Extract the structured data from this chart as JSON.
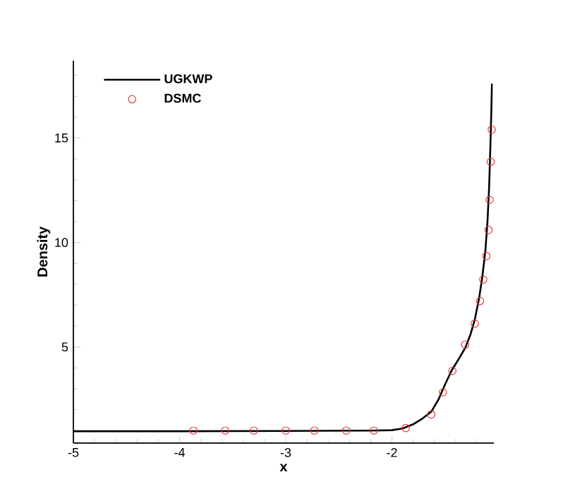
{
  "chart_data": {
    "type": "line",
    "xlabel": "x",
    "ylabel": "Density",
    "xlim": [
      -5,
      -1.04
    ],
    "ylim": [
      0.4,
      18.7
    ],
    "xticks": [
      -5,
      -4,
      -3,
      -2,
      {
        "value": -4.8,
        "label": null
      },
      {
        "value": -4.6,
        "label": null
      },
      {
        "value": -4.4,
        "label": null
      },
      {
        "value": -4.2,
        "label": null
      },
      {
        "value": -3.8,
        "label": null
      },
      {
        "value": -3.6,
        "label": null
      },
      {
        "value": -3.4,
        "label": null
      },
      {
        "value": -3.2,
        "label": null
      },
      {
        "value": -2.8,
        "label": null
      },
      {
        "value": -2.6,
        "label": null
      },
      {
        "value": -2.4,
        "label": null
      },
      {
        "value": -2.2,
        "label": null
      },
      {
        "value": -1.8,
        "label": null
      },
      {
        "value": -1.6,
        "label": null
      },
      {
        "value": -1.4,
        "label": null
      },
      {
        "value": -1.2,
        "label": null
      }
    ],
    "yticks": [
      5,
      10,
      15,
      {
        "value": 1,
        "label": null
      },
      {
        "value": 2,
        "label": null
      },
      {
        "value": 3,
        "label": null
      },
      {
        "value": 4,
        "label": null
      },
      {
        "value": 6,
        "label": null
      },
      {
        "value": 7,
        "label": null
      },
      {
        "value": 8,
        "label": null
      },
      {
        "value": 9,
        "label": null
      },
      {
        "value": 11,
        "label": null
      },
      {
        "value": 12,
        "label": null
      },
      {
        "value": 13,
        "label": null
      },
      {
        "value": 14,
        "label": null
      },
      {
        "value": 16,
        "label": null
      },
      {
        "value": 17,
        "label": null
      },
      {
        "value": 18,
        "label": null
      }
    ],
    "legend": "top left",
    "grid": false,
    "series": [
      {
        "name": "UGKWP",
        "color": "#000000",
        "marker": "none",
        "line_style": "solid",
        "x": [
          -5,
          -4,
          -3,
          -2.2,
          -2,
          -1.9,
          -1.8,
          -1.72,
          -1.63,
          -1.56,
          -1.5,
          -1.44,
          -1.38,
          -1.31,
          -1.26,
          -1.22,
          -1.18,
          -1.15,
          -1.12,
          -1.1,
          -1.085,
          -1.075,
          -1.065,
          -1.058
        ],
        "values": [
          0.97,
          0.97,
          0.98,
          1.0,
          1.02,
          1.1,
          1.3,
          1.55,
          1.9,
          2.5,
          3.2,
          3.85,
          4.35,
          4.95,
          5.6,
          6.3,
          7.3,
          8.3,
          9.6,
          11.0,
          12.6,
          14.2,
          16.0,
          17.6
        ]
      },
      {
        "name": "DSMC",
        "type": "scatter",
        "color": "#e8383d",
        "marker": "circle",
        "x": [
          -3.87,
          -3.57,
          -3.3,
          -3.0,
          -2.73,
          -2.43,
          -2.17,
          -1.87,
          -1.63,
          -1.52,
          -1.43,
          -1.31,
          -1.22,
          -1.17,
          -1.14,
          -1.11,
          -1.09,
          -1.08,
          -1.07,
          -1.06
        ],
        "values": [
          1,
          1,
          1,
          1,
          1,
          1,
          1,
          1.12,
          1.77,
          2.83,
          3.86,
          5.11,
          6.12,
          7.2,
          8.23,
          9.35,
          10.6,
          12.04,
          13.86,
          15.4
        ]
      }
    ]
  }
}
